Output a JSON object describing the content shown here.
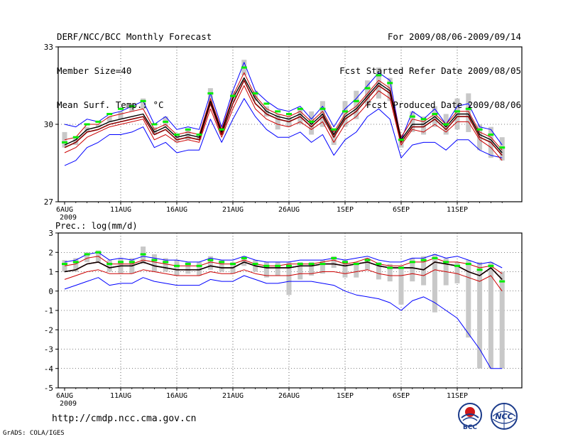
{
  "header": {
    "left": [
      "DERF/NCC/BCC Monthly Forecast",
      "Member Size=40",
      "Mean Surf. Temp.: °C"
    ],
    "right": [
      "For 2009/08/06-2009/09/14",
      "Fcst Started Refer Date 2009/08/05",
      "Fcst Produced Date 2009/08/06"
    ]
  },
  "footer": {
    "url": "http://cmdp.ncc.cma.gov.cn",
    "credit": "GrADS: COLA/IGES"
  },
  "logos": {
    "bcc": "BCC",
    "ncc": "NCC"
  },
  "colors": {
    "mean": "#000000",
    "median": "#8b0000",
    "spread": "#cc0000",
    "extreme": "#0000ff",
    "mark": "#00ee00",
    "bar": "#c8c8c8"
  },
  "chart_data": [
    {
      "type": "line",
      "title": "Mean Surf. Temp.: °C",
      "ylim": [
        27,
        33
      ],
      "yticks": [
        27,
        30,
        33
      ],
      "x_ticks": [
        "6AUG",
        "11AUG",
        "16AUG",
        "21AUG",
        "26AUG",
        "1SEP",
        "6SEP",
        "11SEP"
      ],
      "x_year": "2009",
      "n_days": 40,
      "series": [
        {
          "name": "max",
          "values": [
            30.0,
            29.9,
            30.2,
            30.1,
            30.4,
            30.5,
            30.7,
            30.9,
            30.0,
            30.3,
            29.8,
            29.9,
            29.8,
            31.2,
            29.9,
            31.3,
            32.4,
            31.3,
            30.9,
            30.6,
            30.5,
            30.7,
            30.2,
            30.7,
            29.9,
            30.6,
            31.0,
            31.5,
            32.0,
            31.7,
            29.4,
            30.5,
            30.2,
            30.6,
            30.0,
            30.7,
            30.8,
            29.9,
            29.8,
            29.2
          ]
        },
        {
          "name": "upper",
          "values": [
            29.4,
            29.5,
            30.0,
            30.0,
            30.3,
            30.4,
            30.5,
            30.6,
            29.8,
            30.0,
            29.6,
            29.7,
            29.6,
            31.0,
            29.8,
            31.1,
            32.0,
            31.1,
            30.6,
            30.4,
            30.3,
            30.5,
            30.1,
            30.5,
            29.7,
            30.4,
            30.7,
            31.2,
            31.7,
            31.4,
            29.5,
            30.2,
            30.1,
            30.4,
            30.0,
            30.5,
            30.5,
            29.7,
            29.5,
            29.0
          ]
        },
        {
          "name": "mean",
          "values": [
            29.2,
            29.4,
            29.8,
            29.9,
            30.1,
            30.2,
            30.3,
            30.4,
            29.7,
            29.9,
            29.5,
            29.6,
            29.5,
            30.9,
            29.7,
            31.0,
            31.8,
            31.0,
            30.5,
            30.3,
            30.2,
            30.4,
            30.0,
            30.4,
            29.6,
            30.3,
            30.6,
            31.1,
            31.6,
            31.3,
            29.4,
            30.0,
            30.0,
            30.3,
            29.9,
            30.4,
            30.4,
            29.6,
            29.4,
            28.9
          ]
        },
        {
          "name": "median",
          "values": [
            29.1,
            29.3,
            29.7,
            29.8,
            30.0,
            30.1,
            30.2,
            30.3,
            29.6,
            29.8,
            29.4,
            29.5,
            29.4,
            30.8,
            29.6,
            30.8,
            31.7,
            30.8,
            30.4,
            30.2,
            30.1,
            30.3,
            29.9,
            30.3,
            29.5,
            30.2,
            30.5,
            31.0,
            31.5,
            31.2,
            29.3,
            29.9,
            29.9,
            30.2,
            29.8,
            30.3,
            30.3,
            29.5,
            29.3,
            28.8
          ]
        },
        {
          "name": "lower",
          "values": [
            28.9,
            29.1,
            29.5,
            29.7,
            29.9,
            30.0,
            30.1,
            30.2,
            29.4,
            29.6,
            29.3,
            29.4,
            29.3,
            30.6,
            29.5,
            30.6,
            31.5,
            30.6,
            30.2,
            30.0,
            29.9,
            30.1,
            29.8,
            30.1,
            29.3,
            30.0,
            30.3,
            30.8,
            31.3,
            31.0,
            29.2,
            29.8,
            29.7,
            30.0,
            29.7,
            30.1,
            30.1,
            29.4,
            29.1,
            28.6
          ]
        },
        {
          "name": "min",
          "values": [
            28.4,
            28.6,
            29.1,
            29.3,
            29.6,
            29.6,
            29.7,
            29.9,
            29.1,
            29.3,
            28.9,
            29.0,
            29.0,
            30.2,
            29.3,
            30.2,
            31.0,
            30.3,
            29.8,
            29.5,
            29.5,
            29.7,
            29.3,
            29.6,
            28.8,
            29.4,
            29.7,
            30.3,
            30.6,
            30.2,
            28.7,
            29.2,
            29.3,
            29.3,
            29.0,
            29.4,
            29.4,
            29.0,
            28.8,
            28.7
          ]
        },
        {
          "name": "mark",
          "values": [
            29.3,
            29.5,
            30.0,
            30.1,
            30.4,
            30.6,
            30.7,
            30.9,
            30.0,
            30.1,
            29.6,
            29.8,
            29.6,
            31.2,
            29.8,
            31.1,
            32.2,
            31.2,
            30.8,
            30.5,
            30.4,
            30.6,
            30.1,
            30.6,
            29.8,
            30.5,
            30.9,
            31.4,
            31.9,
            31.6,
            29.4,
            30.3,
            30.2,
            30.4,
            30.0,
            30.5,
            30.6,
            29.8,
            29.6,
            29.1
          ]
        },
        {
          "name": "bar_high",
          "values": [
            29.7,
            29.5,
            29.9,
            30.0,
            30.3,
            30.5,
            30.8,
            31.0,
            29.9,
            30.3,
            29.6,
            29.8,
            29.6,
            31.4,
            29.8,
            31.3,
            32.5,
            31.3,
            30.7,
            30.4,
            30.3,
            30.6,
            30.5,
            30.9,
            29.8,
            30.9,
            31.3,
            31.7,
            32.2,
            31.8,
            29.6,
            30.5,
            30.3,
            30.7,
            30.4,
            31.0,
            31.2,
            30.0,
            29.9,
            29.5
          ]
        },
        {
          "name": "bar_low",
          "values": [
            29.1,
            29.2,
            29.7,
            29.9,
            30.1,
            30.2,
            30.5,
            30.6,
            29.6,
            29.9,
            29.3,
            29.4,
            29.4,
            30.8,
            29.6,
            30.9,
            31.9,
            30.9,
            30.3,
            29.8,
            29.9,
            30.0,
            29.6,
            29.9,
            29.2,
            29.9,
            30.2,
            30.7,
            31.0,
            30.9,
            29.1,
            29.7,
            29.6,
            29.9,
            29.6,
            29.8,
            29.7,
            29.0,
            28.7,
            28.6
          ]
        }
      ]
    },
    {
      "type": "line",
      "title": "Prec.: log(mm/d)",
      "ylim": [
        -5,
        3
      ],
      "yticks": [
        -5,
        -4,
        -3,
        -2,
        -1,
        0,
        1,
        2,
        3
      ],
      "x_ticks": [
        "6AUG",
        "11AUG",
        "16AUG",
        "21AUG",
        "26AUG",
        "1SEP",
        "6SEP",
        "11SEP"
      ],
      "x_year": "2009",
      "n_days": 40,
      "series": [
        {
          "name": "max",
          "values": [
            1.5,
            1.6,
            1.9,
            2.0,
            1.6,
            1.7,
            1.6,
            1.8,
            1.7,
            1.6,
            1.6,
            1.5,
            1.5,
            1.7,
            1.6,
            1.6,
            1.8,
            1.6,
            1.5,
            1.5,
            1.5,
            1.6,
            1.6,
            1.6,
            1.7,
            1.6,
            1.7,
            1.8,
            1.6,
            1.5,
            1.5,
            1.7,
            1.7,
            1.9,
            1.7,
            1.8,
            1.6,
            1.4,
            1.5,
            1.2
          ]
        },
        {
          "name": "upper",
          "values": [
            1.3,
            1.4,
            1.7,
            1.8,
            1.4,
            1.4,
            1.4,
            1.6,
            1.5,
            1.4,
            1.3,
            1.3,
            1.3,
            1.5,
            1.4,
            1.4,
            1.6,
            1.4,
            1.3,
            1.3,
            1.4,
            1.4,
            1.4,
            1.5,
            1.6,
            1.4,
            1.5,
            1.7,
            1.4,
            1.3,
            1.3,
            1.5,
            1.5,
            1.7,
            1.5,
            1.5,
            1.4,
            1.2,
            1.3,
            0.9
          ]
        },
        {
          "name": "mean",
          "values": [
            1.0,
            1.1,
            1.4,
            1.5,
            1.2,
            1.3,
            1.3,
            1.5,
            1.3,
            1.2,
            1.1,
            1.1,
            1.1,
            1.3,
            1.2,
            1.2,
            1.5,
            1.3,
            1.2,
            1.2,
            1.2,
            1.3,
            1.3,
            1.4,
            1.4,
            1.3,
            1.4,
            1.5,
            1.3,
            1.2,
            1.2,
            1.2,
            1.1,
            1.5,
            1.4,
            1.3,
            1.0,
            0.8,
            1.2,
            0.6
          ]
        },
        {
          "name": "median",
          "values": [
            1.0,
            1.1,
            1.4,
            1.5,
            1.2,
            1.3,
            1.3,
            1.5,
            1.3,
            1.2,
            1.1,
            1.1,
            1.1,
            1.3,
            1.2,
            1.2,
            1.5,
            1.3,
            1.2,
            1.2,
            1.2,
            1.3,
            1.3,
            1.4,
            1.4,
            1.3,
            1.4,
            1.5,
            1.3,
            1.2,
            1.2,
            1.2,
            1.1,
            1.5,
            1.4,
            1.3,
            1.0,
            0.8,
            1.2,
            0.6
          ]
        },
        {
          "name": "lower",
          "values": [
            0.6,
            0.8,
            1.0,
            1.1,
            0.9,
            0.9,
            0.9,
            1.1,
            1.0,
            0.9,
            0.8,
            0.8,
            0.8,
            1.0,
            0.9,
            0.9,
            1.1,
            0.9,
            0.8,
            0.8,
            0.8,
            0.9,
            0.9,
            1.0,
            1.0,
            0.9,
            1.0,
            1.1,
            0.9,
            0.8,
            0.8,
            0.9,
            0.8,
            1.1,
            1.0,
            0.9,
            0.7,
            0.5,
            0.8,
            0.0
          ]
        },
        {
          "name": "min",
          "values": [
            0.1,
            0.3,
            0.5,
            0.7,
            0.3,
            0.4,
            0.4,
            0.7,
            0.5,
            0.4,
            0.3,
            0.3,
            0.3,
            0.6,
            0.5,
            0.5,
            0.8,
            0.6,
            0.4,
            0.4,
            0.5,
            0.5,
            0.5,
            0.4,
            0.3,
            0.0,
            -0.2,
            -0.3,
            -0.4,
            -0.6,
            -1.0,
            -0.5,
            -0.3,
            -0.6,
            -1.0,
            -1.4,
            -2.2,
            -3.0,
            -4.0,
            -4.0
          ]
        },
        {
          "name": "mark",
          "values": [
            1.4,
            1.5,
            1.9,
            2.0,
            1.4,
            1.5,
            1.5,
            1.9,
            1.6,
            1.5,
            1.3,
            1.4,
            1.3,
            1.6,
            1.5,
            1.4,
            1.7,
            1.4,
            1.3,
            1.3,
            1.3,
            1.4,
            1.4,
            1.4,
            1.7,
            1.5,
            1.4,
            1.6,
            1.4,
            1.2,
            1.2,
            1.5,
            1.6,
            1.7,
            1.5,
            1.3,
            1.4,
            1.1,
            1.3,
            0.5
          ]
        },
        {
          "name": "bar_high",
          "values": [
            1.6,
            1.7,
            2.0,
            2.1,
            1.6,
            1.7,
            1.7,
            2.3,
            1.9,
            1.7,
            1.6,
            1.5,
            1.5,
            1.8,
            1.6,
            1.5,
            1.8,
            1.6,
            1.5,
            1.5,
            1.5,
            1.5,
            1.5,
            1.6,
            1.8,
            1.6,
            1.5,
            1.7,
            1.5,
            1.4,
            1.3,
            1.7,
            1.8,
            1.9,
            1.7,
            1.5,
            1.6,
            1.5,
            1.5,
            1.0
          ]
        },
        {
          "name": "bar_low",
          "values": [
            1.0,
            1.0,
            1.5,
            1.5,
            1.0,
            0.9,
            0.9,
            1.4,
            1.0,
            1.0,
            0.8,
            0.9,
            0.8,
            1.1,
            1.0,
            0.9,
            1.3,
            1.0,
            0.7,
            0.8,
            -0.2,
            0.6,
            0.8,
            0.9,
            1.2,
            0.7,
            0.7,
            1.1,
            0.6,
            0.5,
            -0.7,
            0.5,
            0.3,
            -1.1,
            0.3,
            0.4,
            -2.4,
            -4.0,
            -4.0,
            -4.0
          ]
        }
      ]
    }
  ]
}
